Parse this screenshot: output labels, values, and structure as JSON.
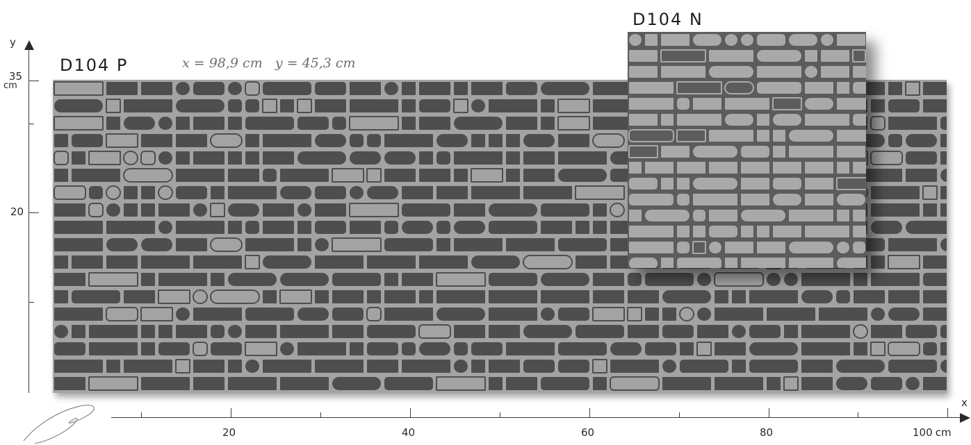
{
  "products": {
    "p": {
      "code": "D104 P",
      "dimensions": "x = 98,9 cm   y = 45,3 cm",
      "base_color": "#a3a3a3",
      "motif_color": "#4e4e4e"
    },
    "n": {
      "code": "D104 N",
      "base_color": "#5c5c5c",
      "motif_color": "#a9a9a9"
    }
  },
  "y_axis": {
    "letter": "y",
    "ticks": [
      {
        "value": "35",
        "unit": "cm"
      },
      {
        "value": "20",
        "unit": ""
      }
    ]
  },
  "x_axis": {
    "letter": "x",
    "ticks": [
      {
        "value": "20"
      },
      {
        "value": "40"
      },
      {
        "value": "60"
      },
      {
        "value": "80"
      },
      {
        "value": "100",
        "unit": "cm"
      }
    ]
  }
}
